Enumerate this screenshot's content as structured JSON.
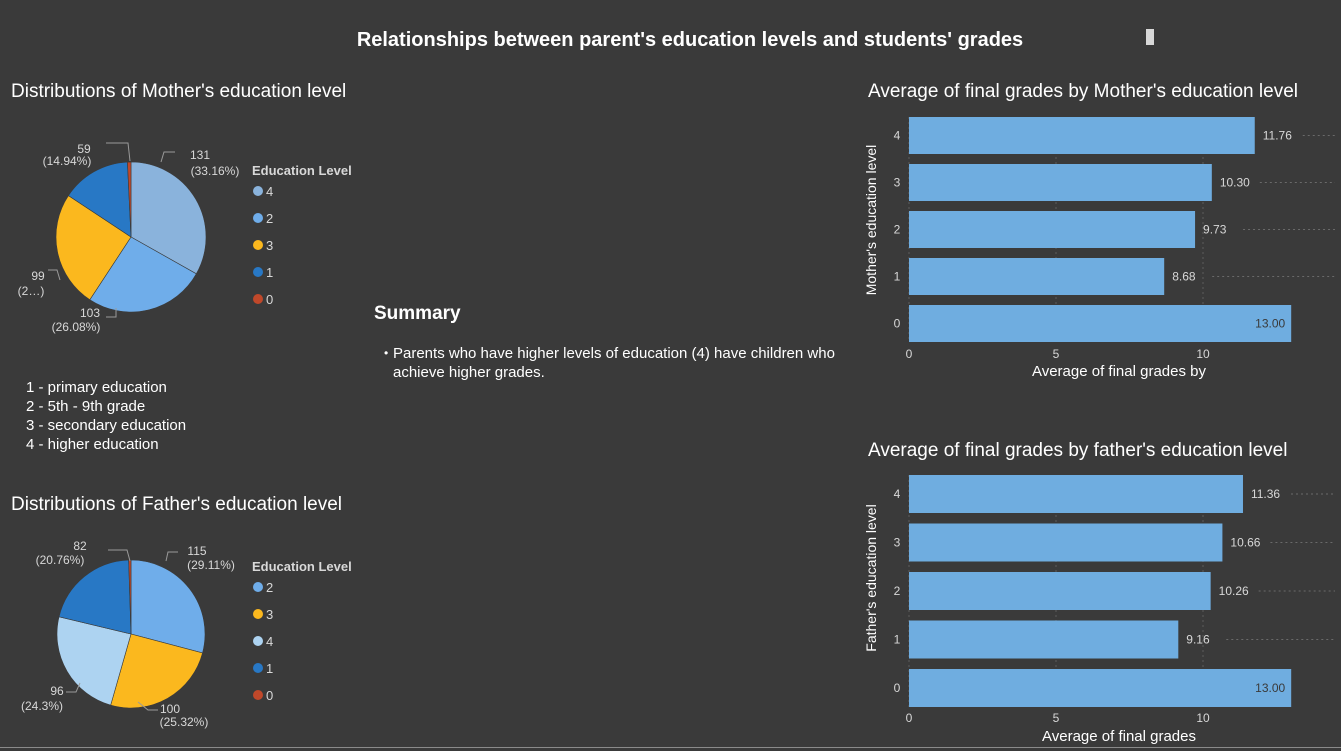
{
  "title": "Relationships between parent's education levels and students' grades",
  "mother_pie": {
    "title": "Distributions of Mother's education level",
    "legend_title": "Education Level",
    "legend": [
      "4",
      "2",
      "3",
      "1",
      "0"
    ],
    "labels": [
      {
        "count": "131",
        "pct": "(33.16%)"
      },
      {
        "count": "103",
        "pct": "(26.08%)"
      },
      {
        "count": "99",
        "pct": "(2…)"
      },
      {
        "count": "59",
        "pct": "(14.94%)"
      }
    ]
  },
  "key": [
    "1 - primary education",
    "2 - 5th - 9th grade",
    "3 - secondary education",
    "4 - higher education"
  ],
  "father_pie": {
    "title": "Distributions of Father's education level",
    "legend_title": "Education Level",
    "legend": [
      "2",
      "3",
      "4",
      "1",
      "0"
    ],
    "labels": [
      {
        "count": "115",
        "pct": "(29.11%)"
      },
      {
        "count": "100",
        "pct": "(25.32%)"
      },
      {
        "count": "96",
        "pct": "(24.3%)"
      },
      {
        "count": "82",
        "pct": "(20.76%)"
      }
    ]
  },
  "summary": {
    "title": "Summary",
    "bullet": "•",
    "text": "Parents who have higher levels of education (4) have children who achieve higher grades."
  },
  "mother_bar": {
    "title": "Average of final grades by Mother's education level",
    "ylabel": "Mother's education level",
    "xlabel": "Average of final grades by",
    "xticks": [
      "0",
      "5",
      "10"
    ]
  },
  "father_bar": {
    "title": "Average of final grades by father's education level",
    "ylabel": "Father's education level",
    "xlabel": "Average of final grades",
    "xticks": [
      "0",
      "5",
      "10"
    ]
  },
  "colors": {
    "background": "#3a3a3a",
    "bar": "#6fade0",
    "level_4": "#8ab3dc",
    "level_2": "#6fadea",
    "level_3": "#fbb81e",
    "level_1": "#2878c5",
    "level_0": "#c0482a",
    "father_level_4": "#add3f1"
  },
  "chart_data": [
    {
      "type": "pie",
      "title": "Distributions of Mother's education level",
      "legend_title": "Education Level",
      "categories": [
        "4",
        "2",
        "3",
        "1",
        "0"
      ],
      "values": [
        131,
        103,
        99,
        59,
        3
      ],
      "percentages": [
        33.16,
        26.08,
        25.06,
        14.94,
        0.76
      ],
      "colors": [
        "#8ab3dc",
        "#6fadea",
        "#fbb81e",
        "#2878c5",
        "#c0482a"
      ],
      "legend_position": "right"
    },
    {
      "type": "pie",
      "title": "Distributions of Father's education level",
      "legend_title": "Education Level",
      "categories": [
        "2",
        "3",
        "4",
        "1",
        "0"
      ],
      "values": [
        115,
        100,
        96,
        82,
        2
      ],
      "percentages": [
        29.11,
        25.32,
        24.3,
        20.76,
        0.51
      ],
      "colors": [
        "#6fadea",
        "#fbb81e",
        "#add3f1",
        "#2878c5",
        "#c0482a"
      ],
      "legend_position": "right"
    },
    {
      "type": "bar",
      "orientation": "horizontal",
      "title": "Average of final grades by Mother's education level",
      "ylabel": "Mother's education level",
      "xlabel": "Average of final grades by",
      "categories": [
        "4",
        "3",
        "2",
        "1",
        "0"
      ],
      "values": [
        11.76,
        10.3,
        9.73,
        8.68,
        13.0
      ],
      "data_labels": [
        "11.76",
        "10.30",
        "9.73",
        "8.68",
        "13.00"
      ],
      "xlim": [
        0,
        14
      ],
      "xticks": [
        0,
        5,
        10
      ],
      "grid": true
    },
    {
      "type": "bar",
      "orientation": "horizontal",
      "title": "Average of final grades by father's education level",
      "ylabel": "Father's education level",
      "xlabel": "Average of final grades",
      "categories": [
        "4",
        "3",
        "2",
        "1",
        "0"
      ],
      "values": [
        11.36,
        10.66,
        10.26,
        9.16,
        13.0
      ],
      "data_labels": [
        "11.36",
        "10.66",
        "10.26",
        "9.16",
        "13.00"
      ],
      "xlim": [
        0,
        14
      ],
      "xticks": [
        0,
        5,
        10
      ],
      "grid": true
    }
  ]
}
